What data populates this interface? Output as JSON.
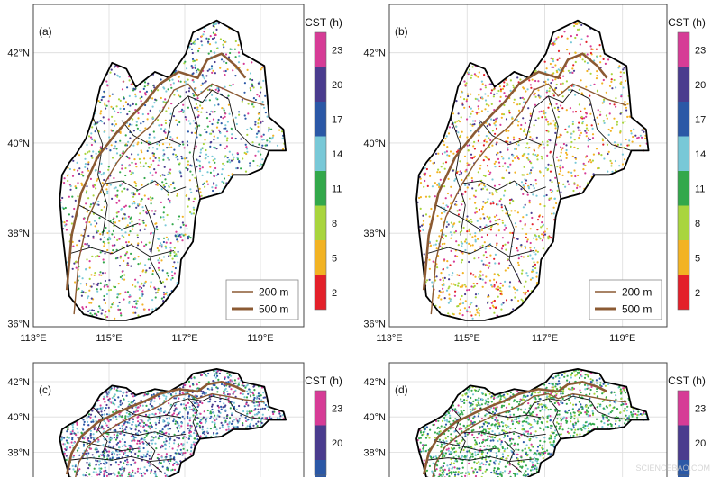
{
  "panels": [
    {
      "label": "(a)",
      "scheme": "mixed",
      "show_legend": true
    },
    {
      "label": "(b)",
      "scheme": "warm",
      "show_legend": true
    },
    {
      "label": "(c)",
      "scheme": "cool",
      "show_legend": false
    },
    {
      "label": "(d)",
      "scheme": "green",
      "show_legend": false
    }
  ],
  "lon_ticks": [
    "113°E",
    "115°E",
    "117°E",
    "119°E"
  ],
  "lat_ticks": [
    "36°N",
    "38°N",
    "40°N",
    "42°N"
  ],
  "colorbar": {
    "title": "CST (h)",
    "ticks": [
      "2",
      "5",
      "8",
      "11",
      "14",
      "17",
      "20",
      "23"
    ],
    "colors": [
      "#e3202a",
      "#f2b324",
      "#a9d53e",
      "#33a84b",
      "#78c8d7",
      "#2b58a6",
      "#4a3c8e",
      "#d63c96"
    ]
  },
  "legend": {
    "items": [
      {
        "label": "200 m",
        "color": "#8b5a33"
      },
      {
        "label": "500 m",
        "color": "#8b5a33"
      }
    ]
  },
  "watermark": "SCIENCEBAO.COM"
}
